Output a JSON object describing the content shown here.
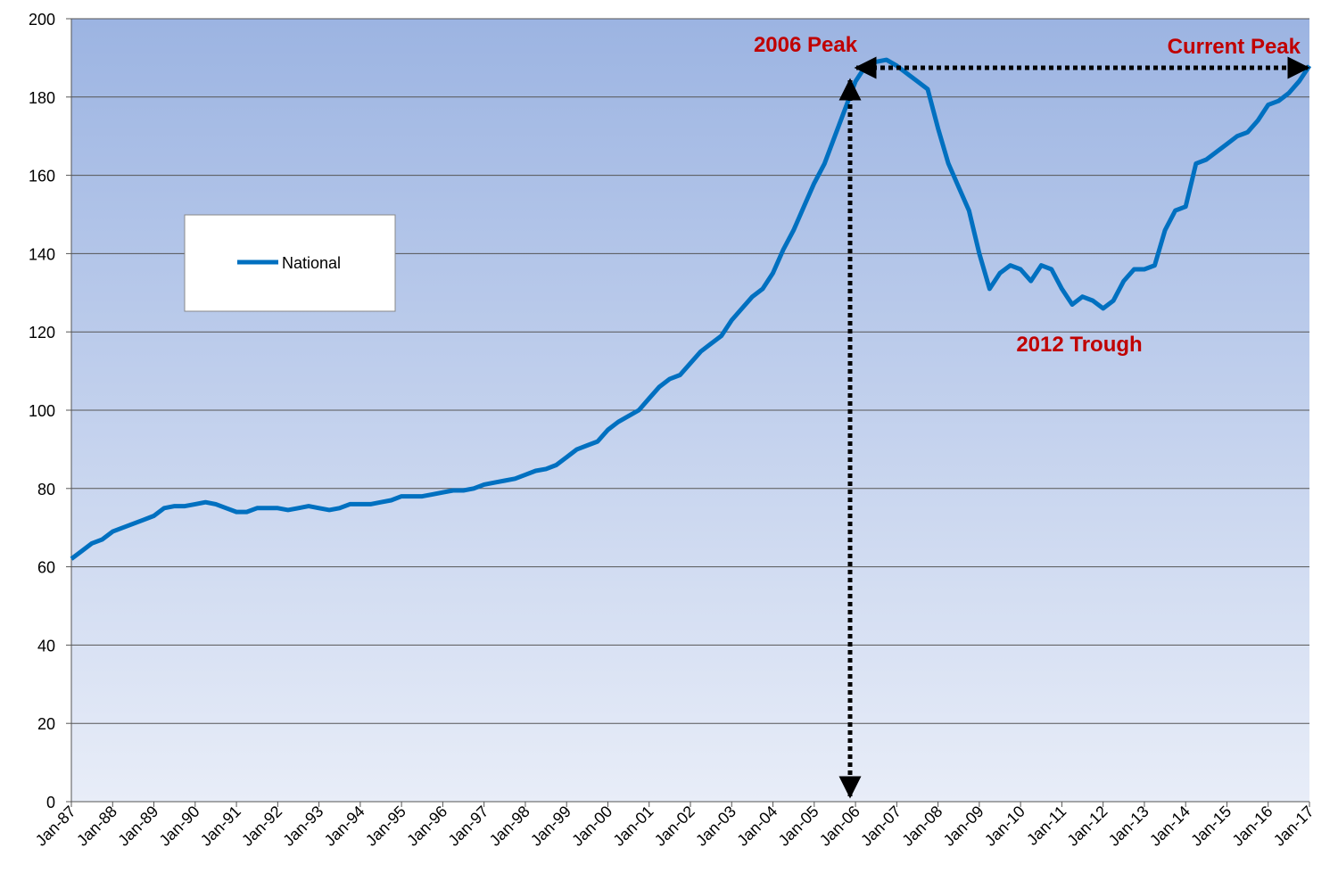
{
  "chart_data": {
    "type": "line",
    "series": [
      {
        "name": "National",
        "color": "#0070c0",
        "values": [
          62,
          64,
          66,
          67,
          69,
          70,
          71,
          72,
          73,
          75,
          75.5,
          75.5,
          76,
          76.5,
          76,
          75,
          74,
          74,
          75,
          75,
          75,
          74.5,
          75,
          75.5,
          75,
          74.5,
          75,
          76,
          76,
          76,
          76.5,
          77,
          78,
          78,
          78,
          78.5,
          79,
          79.5,
          79.5,
          80,
          81,
          81.5,
          82,
          82.5,
          83.5,
          84.5,
          85,
          86,
          88,
          90,
          91,
          92,
          95,
          97,
          98.5,
          100,
          103,
          106,
          108,
          109,
          112,
          115,
          117,
          119,
          123,
          126,
          129,
          131,
          135,
          141,
          146,
          152,
          158,
          163,
          170,
          177,
          184,
          188,
          189,
          189.5,
          188,
          186,
          184,
          182,
          172,
          163,
          157,
          151,
          140,
          131,
          135,
          137,
          136,
          133,
          137,
          136,
          131,
          127,
          129,
          128,
          126,
          128,
          133,
          136,
          136,
          137,
          146,
          151,
          152,
          163,
          164,
          166,
          168,
          170,
          171,
          174,
          178,
          179,
          181,
          184,
          188
        ]
      }
    ],
    "categories": [
      "Jan-87",
      null,
      null,
      null,
      "Jan-88",
      null,
      null,
      null,
      "Jan-89",
      null,
      null,
      null,
      "Jan-90",
      null,
      null,
      null,
      "Jan-91",
      null,
      null,
      null,
      "Jan-92",
      null,
      null,
      null,
      "Jan-93",
      null,
      null,
      null,
      "Jan-94",
      null,
      null,
      null,
      "Jan-95",
      null,
      null,
      null,
      "Jan-96",
      null,
      null,
      null,
      "Jan-97",
      null,
      null,
      null,
      "Jan-98",
      null,
      null,
      null,
      "Jan-99",
      null,
      null,
      null,
      "Jan-00",
      null,
      null,
      null,
      "Jan-01",
      null,
      null,
      null,
      "Jan-02",
      null,
      null,
      null,
      "Jan-03",
      null,
      null,
      null,
      "Jan-04",
      null,
      null,
      null,
      "Jan-05",
      null,
      null,
      null,
      "Jan-06",
      null,
      null,
      null,
      "Jan-07",
      null,
      null,
      null,
      "Jan-08",
      null,
      null,
      null,
      "Jan-09",
      null,
      null,
      null,
      "Jan-10",
      null,
      null,
      null,
      "Jan-11",
      null,
      null,
      null,
      "Jan-12",
      null,
      null,
      null,
      "Jan-13",
      null,
      null,
      null,
      "Jan-14",
      null,
      null,
      null,
      "Jan-15",
      null,
      null,
      null,
      "Jan-16",
      null,
      null,
      null,
      "Jan-17"
    ],
    "ylim": [
      0,
      200
    ],
    "yticks": [
      0,
      20,
      40,
      60,
      80,
      100,
      120,
      140,
      160,
      180,
      200
    ],
    "grid": true,
    "annotations": [
      "2006 Peak",
      "Current Peak",
      "2012 Trough"
    ]
  }
}
